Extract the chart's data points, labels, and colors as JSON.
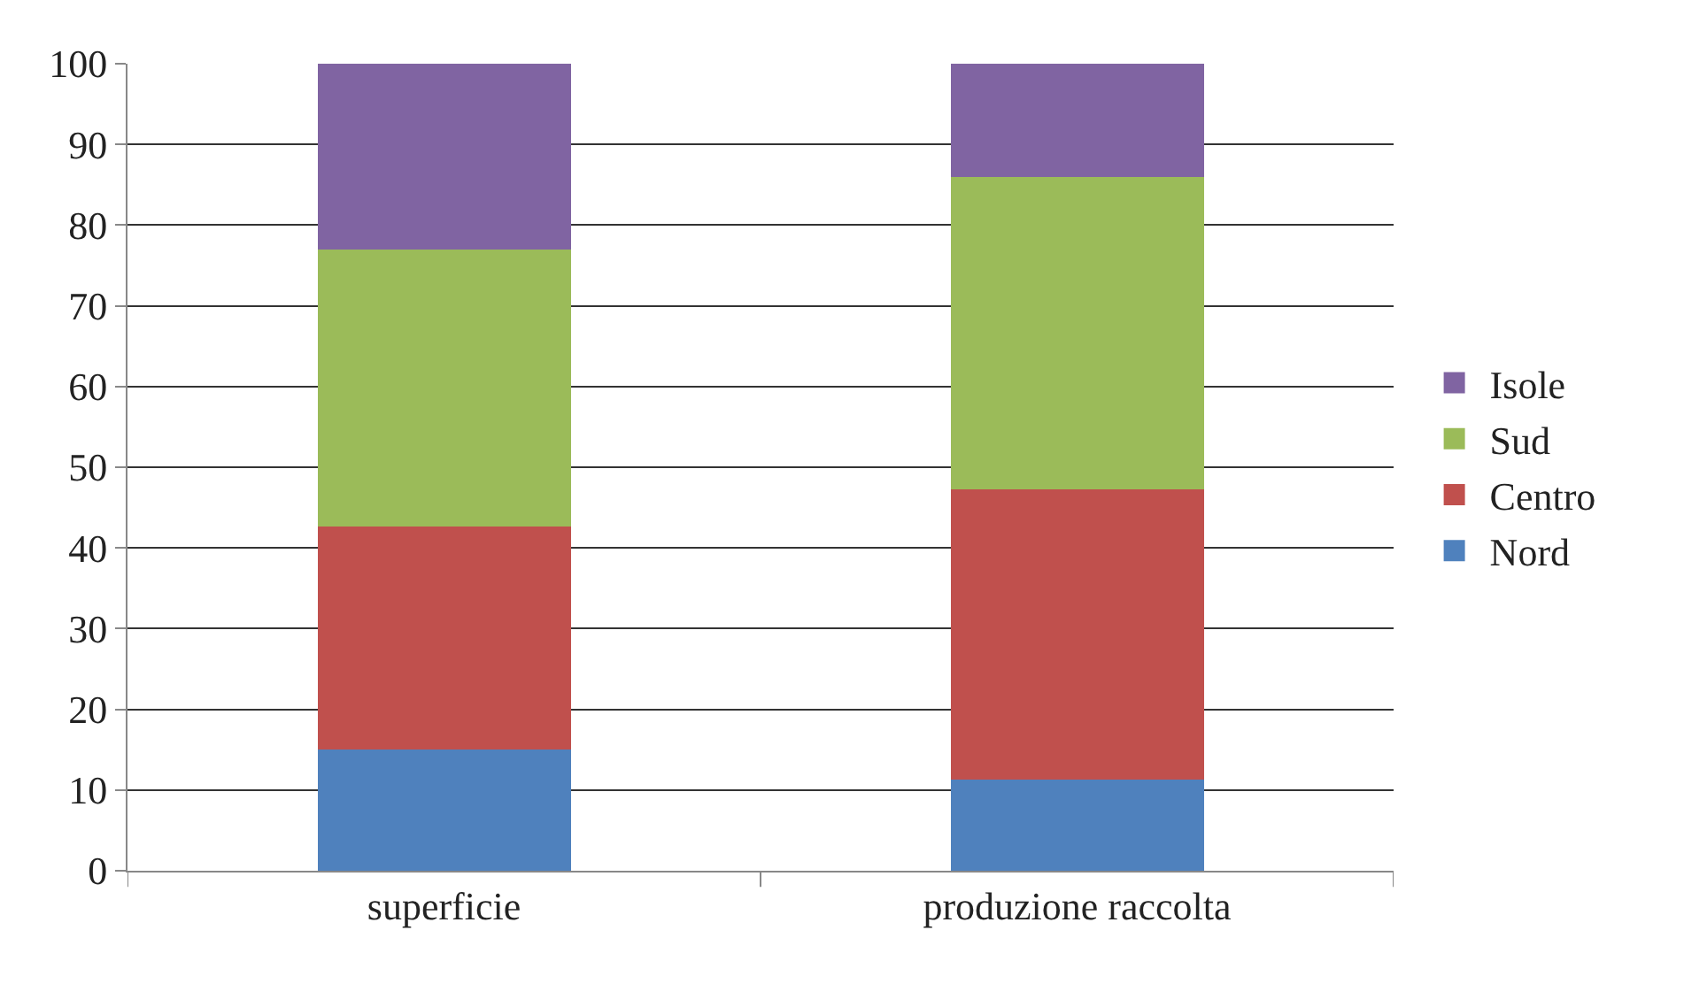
{
  "chart_data": {
    "type": "bar",
    "stacked": true,
    "categories": [
      "superficie",
      "produzione raccolta"
    ],
    "series": [
      {
        "name": "Nord",
        "color": "#4f81bd",
        "values": [
          15,
          11.3
        ]
      },
      {
        "name": "Centro",
        "color": "#c0504d",
        "values": [
          27.6,
          36
        ]
      },
      {
        "name": "Sud",
        "color": "#9bbb59",
        "values": [
          34.4,
          38.7
        ]
      },
      {
        "name": "Isole",
        "color": "#8064a2",
        "values": [
          23,
          14
        ]
      }
    ],
    "ylim": [
      0,
      100
    ],
    "yticks": [
      0,
      10,
      20,
      30,
      40,
      50,
      60,
      70,
      80,
      90,
      100
    ],
    "grid": "y",
    "legend": "right"
  }
}
